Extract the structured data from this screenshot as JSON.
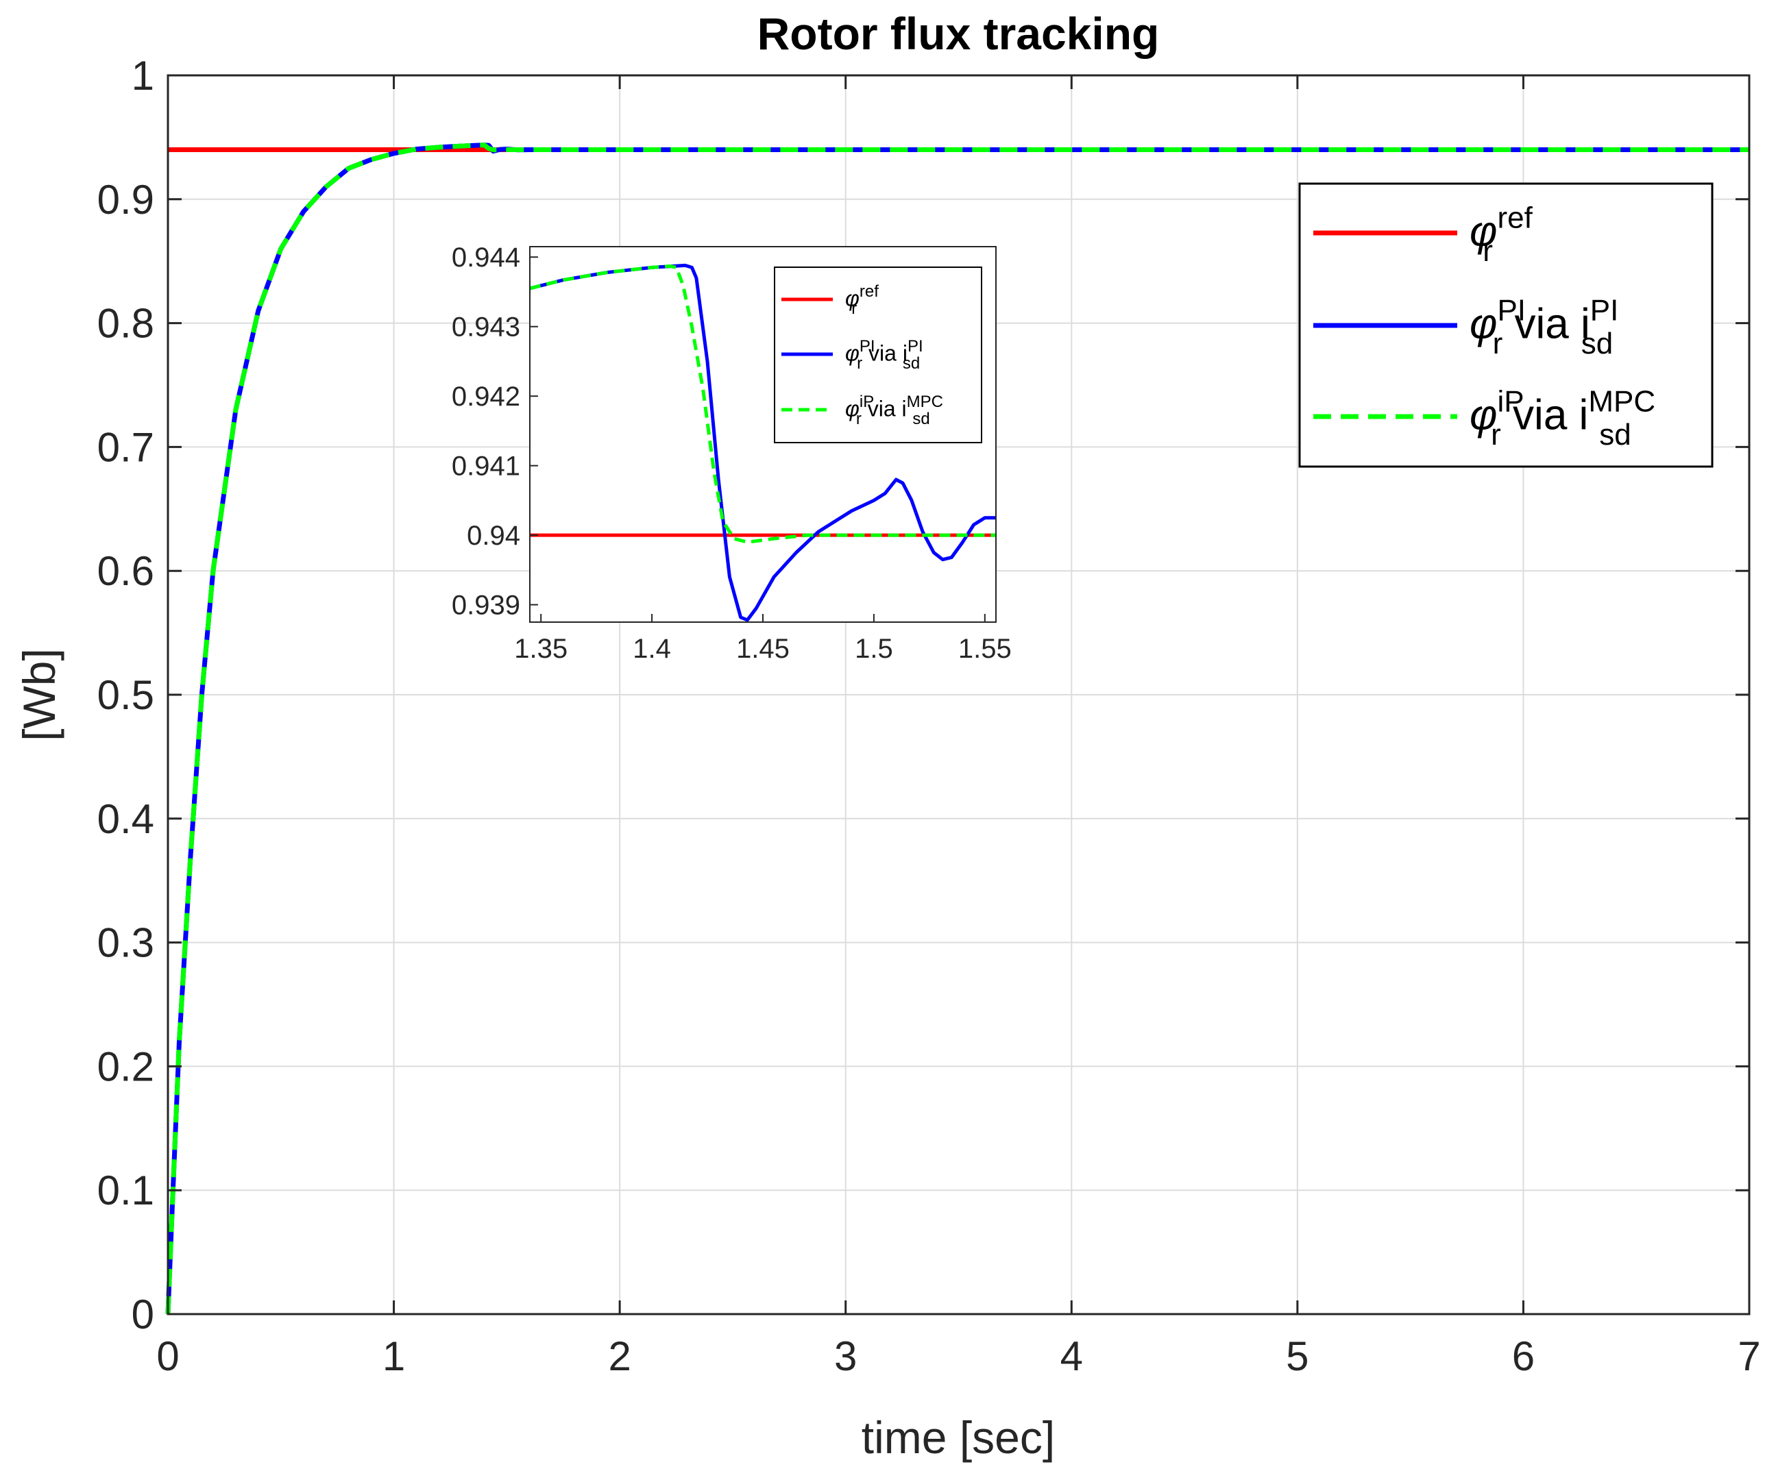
{
  "chart_data": [
    {
      "type": "line",
      "title": "Rotor flux tracking",
      "xlabel": "time [sec]",
      "ylabel": "[Wb]",
      "xlim": [
        0,
        7
      ],
      "ylim": [
        0,
        1
      ],
      "xticks": [
        "0",
        "1",
        "2",
        "3",
        "4",
        "5",
        "6",
        "7"
      ],
      "yticks": [
        "0",
        "0.1",
        "0.2",
        "0.3",
        "0.4",
        "0.5",
        "0.6",
        "0.7",
        "0.8",
        "0.9",
        "1"
      ],
      "grid": true,
      "legend_position": "top-right",
      "series": [
        {
          "name": "φ_r^ref",
          "legend": {
            "sym": "φ",
            "sup": "ref",
            "sub": "r",
            "mid": "",
            "sym2": "",
            "sup2": "",
            "sub2": ""
          },
          "color": "#ff0000",
          "style": "solid",
          "x": [
            0,
            7
          ],
          "y": [
            0.94,
            0.94
          ]
        },
        {
          "name": "φ_r^PI via i_sd^PI",
          "legend": {
            "sym": "φ",
            "sup": "PI",
            "sub": "r",
            "mid": " via ",
            "sym2": "i",
            "sup2": "PI",
            "sub2": "sd"
          },
          "color": "#0000ff",
          "style": "solid",
          "x": [
            0,
            0.02,
            0.05,
            0.1,
            0.15,
            0.2,
            0.3,
            0.4,
            0.5,
            0.6,
            0.7,
            0.8,
            0.9,
            1.0,
            1.1,
            1.2,
            1.3,
            1.4,
            1.42,
            1.44,
            1.47,
            1.5,
            1.55,
            1.6,
            2,
            3,
            4,
            5,
            6,
            7
          ],
          "y": [
            0,
            0.09,
            0.22,
            0.37,
            0.5,
            0.6,
            0.73,
            0.81,
            0.86,
            0.89,
            0.91,
            0.925,
            0.932,
            0.937,
            0.9405,
            0.942,
            0.943,
            0.9438,
            0.9435,
            0.9388,
            0.9402,
            0.9405,
            0.9398,
            0.94,
            0.94,
            0.94,
            0.94,
            0.94,
            0.94,
            0.94
          ]
        },
        {
          "name": "φ_r^iP via i_sd^MPC",
          "legend": {
            "sym": "φ",
            "sup": "iP",
            "sub": "r",
            "mid": " via ",
            "sym2": "i",
            "sup2": "MPC",
            "sub2": "sd"
          },
          "color": "#00ff00",
          "style": "dashed",
          "x": [
            0,
            0.02,
            0.05,
            0.1,
            0.15,
            0.2,
            0.3,
            0.4,
            0.5,
            0.6,
            0.7,
            0.8,
            0.9,
            1.0,
            1.1,
            1.2,
            1.3,
            1.4,
            1.42,
            1.44,
            1.5,
            2,
            3,
            4,
            5,
            6,
            7
          ],
          "y": [
            0,
            0.09,
            0.22,
            0.37,
            0.5,
            0.6,
            0.73,
            0.81,
            0.86,
            0.89,
            0.91,
            0.925,
            0.932,
            0.937,
            0.9405,
            0.942,
            0.943,
            0.9438,
            0.941,
            0.9399,
            0.94,
            0.94,
            0.94,
            0.94,
            0.94,
            0.94,
            0.94
          ]
        }
      ]
    },
    {
      "type": "line",
      "title": "",
      "xlim": [
        1.345,
        1.555
      ],
      "ylim": [
        0.93875,
        0.94415
      ],
      "xticks": [
        "1.35",
        "1.4",
        "1.45",
        "1.5",
        "1.55"
      ],
      "yticks": [
        "0.939",
        "0.94",
        "0.941",
        "0.942",
        "0.943",
        "0.944"
      ],
      "grid": false,
      "legend_position": "top-right",
      "series": [
        {
          "name": "φ_r^ref",
          "color": "#ff0000",
          "style": "solid",
          "x": [
            1.345,
            1.555
          ],
          "y": [
            0.94,
            0.94
          ]
        },
        {
          "name": "φ_r^PI via i_sd^PI",
          "color": "#0000ff",
          "style": "solid",
          "x": [
            1.345,
            1.36,
            1.38,
            1.4,
            1.41,
            1.415,
            1.418,
            1.42,
            1.425,
            1.43,
            1.435,
            1.44,
            1.443,
            1.447,
            1.455,
            1.465,
            1.475,
            1.49,
            1.5,
            1.505,
            1.51,
            1.513,
            1.517,
            1.522,
            1.527,
            1.531,
            1.535,
            1.54,
            1.545,
            1.55,
            1.555
          ],
          "y": [
            0.94355,
            0.94367,
            0.94378,
            0.94385,
            0.94387,
            0.94388,
            0.94385,
            0.9437,
            0.9425,
            0.9408,
            0.9394,
            0.93882,
            0.93878,
            0.93895,
            0.9394,
            0.93975,
            0.94005,
            0.94035,
            0.9405,
            0.9406,
            0.9408,
            0.94075,
            0.9405,
            0.94005,
            0.93975,
            0.93965,
            0.93968,
            0.9399,
            0.94015,
            0.94025,
            0.94025
          ]
        },
        {
          "name": "φ_r^iP via i_sd^MPC",
          "color": "#00ff00",
          "style": "dashed",
          "x": [
            1.345,
            1.36,
            1.38,
            1.4,
            1.408,
            1.411,
            1.414,
            1.418,
            1.423,
            1.428,
            1.432,
            1.437,
            1.443,
            1.455,
            1.47,
            1.5,
            1.53,
            1.555
          ],
          "y": [
            0.94355,
            0.94367,
            0.94378,
            0.94385,
            0.94387,
            0.94385,
            0.9436,
            0.943,
            0.9421,
            0.9409,
            0.9402,
            0.93995,
            0.9399,
            0.93995,
            0.94,
            0.94,
            0.94,
            0.94
          ]
        }
      ]
    }
  ]
}
